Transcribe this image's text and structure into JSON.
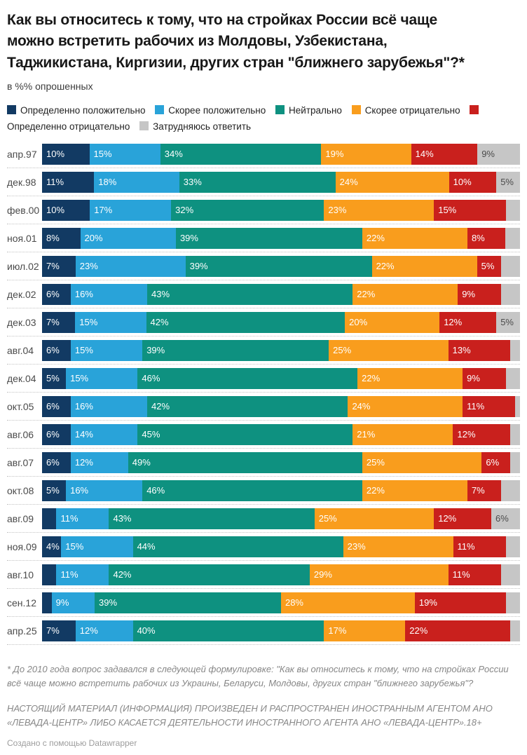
{
  "title": "Как вы относитесь к тому, что на стройках России всё чаще можно встретить рабочих из Молдовы, Узбекистана, Таджикистана, Киргизии, других стран \"ближнего зарубежья\"?*",
  "subtitle": "в %% опрошенных",
  "colors": {
    "definitely_positive": "#123a63",
    "rather_positive": "#29a3d9",
    "neutral": "#0e9180",
    "rather_negative": "#f99d1d",
    "definitely_negative": "#c9201d",
    "hard_to_say": "#c6c6c6"
  },
  "legend": [
    {
      "key": "definitely_positive",
      "label": "Определенно положительно"
    },
    {
      "key": "rather_positive",
      "label": "Скорее положительно"
    },
    {
      "key": "neutral",
      "label": "Нейтрально"
    },
    {
      "key": "rather_negative",
      "label": "Скорее отрицательно"
    },
    {
      "key": "definitely_negative",
      "label": "Определенно отрицательно"
    },
    {
      "key": "hard_to_say",
      "label": "Затрудняюсь ответить"
    }
  ],
  "chart_data": {
    "type": "bar",
    "stacked": true,
    "orientation": "horizontal",
    "unit": "%",
    "grid": false,
    "legend_position": "top",
    "series_keys": [
      "definitely_positive",
      "rather_positive",
      "neutral",
      "rather_negative",
      "definitely_negative",
      "hard_to_say"
    ],
    "series_names": [
      "Определенно положительно",
      "Скорее положительно",
      "Нейтрально",
      "Скорее отрицательно",
      "Определенно отрицательно",
      "Затрудняюсь ответить"
    ],
    "categories": [
      "апр.97",
      "дек.98",
      "фев.00",
      "ноя.01",
      "июл.02",
      "дек.02",
      "дек.03",
      "авг.04",
      "дек.04",
      "окт.05",
      "авг.06",
      "авг.07",
      "окт.08",
      "авг.09",
      "ноя.09",
      "авг.10",
      "сен.12",
      "апр.25"
    ],
    "rows": [
      {
        "label": "апр.97",
        "values": [
          10,
          15,
          34,
          19,
          14,
          9
        ],
        "unlabeled": []
      },
      {
        "label": "дек.98",
        "values": [
          11,
          18,
          33,
          24,
          10,
          5
        ],
        "unlabeled": []
      },
      {
        "label": "фев.00",
        "values": [
          10,
          17,
          32,
          23,
          15,
          3
        ],
        "unlabeled": [
          5
        ]
      },
      {
        "label": "ноя.01",
        "values": [
          8,
          20,
          39,
          22,
          8,
          3
        ],
        "unlabeled": [
          5
        ]
      },
      {
        "label": "июл.02",
        "values": [
          7,
          23,
          39,
          22,
          5,
          4
        ],
        "unlabeled": [
          5
        ]
      },
      {
        "label": "дек.02",
        "values": [
          6,
          16,
          43,
          22,
          9,
          4
        ],
        "unlabeled": [
          5
        ]
      },
      {
        "label": "дек.03",
        "values": [
          7,
          15,
          42,
          20,
          12,
          5
        ],
        "unlabeled": []
      },
      {
        "label": "авг.04",
        "values": [
          6,
          15,
          39,
          25,
          13,
          2
        ],
        "unlabeled": [
          5
        ]
      },
      {
        "label": "дек.04",
        "values": [
          5,
          15,
          46,
          22,
          9,
          3
        ],
        "unlabeled": [
          5
        ]
      },
      {
        "label": "окт.05",
        "values": [
          6,
          16,
          42,
          24,
          11,
          1
        ],
        "unlabeled": [
          5
        ]
      },
      {
        "label": "авг.06",
        "values": [
          6,
          14,
          45,
          21,
          12,
          2
        ],
        "unlabeled": [
          5
        ]
      },
      {
        "label": "авг.07",
        "values": [
          6,
          12,
          49,
          25,
          6,
          2
        ],
        "unlabeled": [
          5
        ]
      },
      {
        "label": "окт.08",
        "values": [
          5,
          16,
          46,
          22,
          7,
          4
        ],
        "unlabeled": [
          5
        ]
      },
      {
        "label": "авг.09",
        "values": [
          3,
          11,
          43,
          25,
          12,
          6
        ],
        "unlabeled": [
          0
        ]
      },
      {
        "label": "ноя.09",
        "values": [
          4,
          15,
          44,
          23,
          11,
          3
        ],
        "unlabeled": [
          5
        ]
      },
      {
        "label": "авг.10",
        "values": [
          3,
          11,
          42,
          29,
          11,
          4
        ],
        "unlabeled": [
          0,
          5
        ]
      },
      {
        "label": "сен.12",
        "values": [
          2,
          9,
          39,
          28,
          19,
          3
        ],
        "unlabeled": [
          0,
          5
        ]
      },
      {
        "label": "апр.25",
        "values": [
          7,
          12,
          40,
          17,
          22,
          2
        ],
        "unlabeled": [
          5
        ]
      }
    ]
  },
  "footnote": "* До 2010 года вопрос задавался в следующей формулировке: \"Как вы относитесь к тому, что на стройках России всё чаще можно встретить рабочих из Украины, Беларуси, Молдовы, других стран \"ближнего зарубежья\"?",
  "disclaimer": "НАСТОЯЩИЙ МАТЕРИАЛ (ИНФОРМАЦИЯ) ПРОИЗВЕДЕН И РАСПРОСТРАНЕН ИНОСТРАННЫМ АГЕНТОМ АНО «ЛЕВАДА-ЦЕНТР» ЛИБО КАСАЕТСЯ ДЕЯТЕЛЬНОСТИ ИНОСТРАННОГО АГЕНТА АНО «ЛЕВАДА-ЦЕНТР».18+",
  "credit": "Создано с помощью Datawrapper"
}
